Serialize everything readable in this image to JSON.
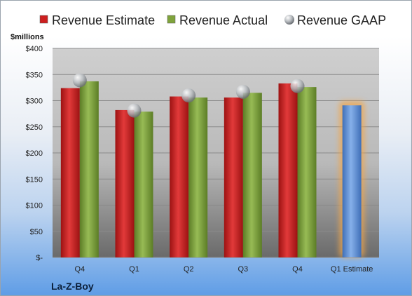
{
  "chart_data": {
    "type": "bar",
    "company": "La-Z-Boy",
    "unit_label": "$millions",
    "categories": [
      "Q4",
      "Q1",
      "Q2",
      "Q3",
      "Q4",
      "Q1 Estimate"
    ],
    "series": [
      {
        "name": "Revenue Estimate",
        "color": "#cc1f1f",
        "values": [
          324,
          282,
          308,
          306,
          333,
          null
        ]
      },
      {
        "name": "Revenue Actual",
        "color": "#7fa33c",
        "values": [
          337,
          279,
          306,
          315,
          326,
          null
        ]
      },
      {
        "name": "Revenue GAAP",
        "color": "#b0b4b8",
        "values": [
          339,
          281,
          310,
          317,
          328,
          null
        ]
      }
    ],
    "forecast": {
      "category": "Q1 Estimate",
      "value": 291,
      "color": "#5b8fd6",
      "glow": "#f2a64a"
    },
    "y_ticks": [
      "$-",
      "$50",
      "$100",
      "$150",
      "$200",
      "$250",
      "$300",
      "$350",
      "$400"
    ],
    "ylim": [
      0,
      400
    ],
    "grid": true,
    "legend_position": "top"
  }
}
